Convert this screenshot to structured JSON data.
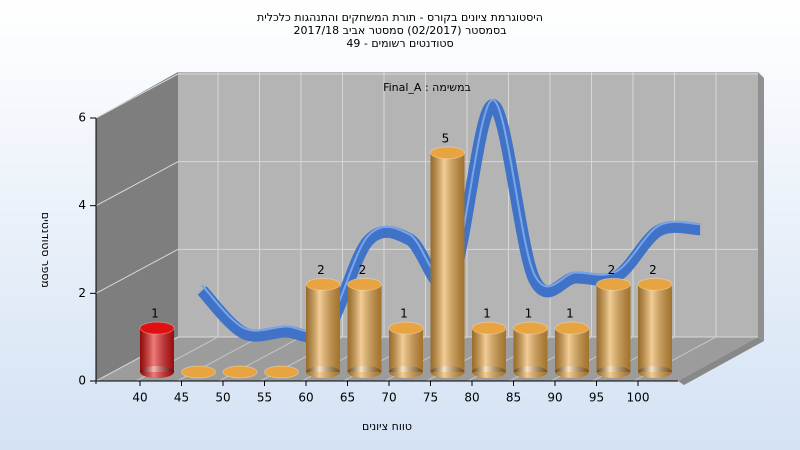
{
  "chart_data": {
    "type": "cylinder-bar",
    "title": "היסטוגרמת ציונים בקורס - תורת המשחקים והתנהגות כלכלית",
    "subtitle": [
      "בסמסטר  (02/2017)  סמסטר אביב 2017/18",
      "סטודנטים רשומים - 49"
    ],
    "annotation": "במשימה : Final_A",
    "x_label": "טווח ציונים",
    "y_label": "מספר סטודנטים",
    "categories": [
      "40",
      "45",
      "50",
      "55",
      "60",
      "65",
      "70",
      "75",
      "80",
      "85",
      "90",
      "95",
      "100"
    ],
    "values": [
      1,
      0,
      0,
      0,
      2,
      2,
      1,
      5,
      1,
      1,
      1,
      2,
      2
    ],
    "colors": [
      "#e01010",
      "#e8a440",
      "#e8a440",
      "#e8a440",
      "#e8a440",
      "#e8a440",
      "#e8a440",
      "#e8a440",
      "#e8a440",
      "#e8a440",
      "#e8a440",
      "#e8a440",
      "#e8a440"
    ],
    "line_color": "#3a70c8",
    "ylim": [
      0,
      6
    ],
    "yticks": [
      0,
      2,
      4,
      6
    ],
    "grid": true
  }
}
